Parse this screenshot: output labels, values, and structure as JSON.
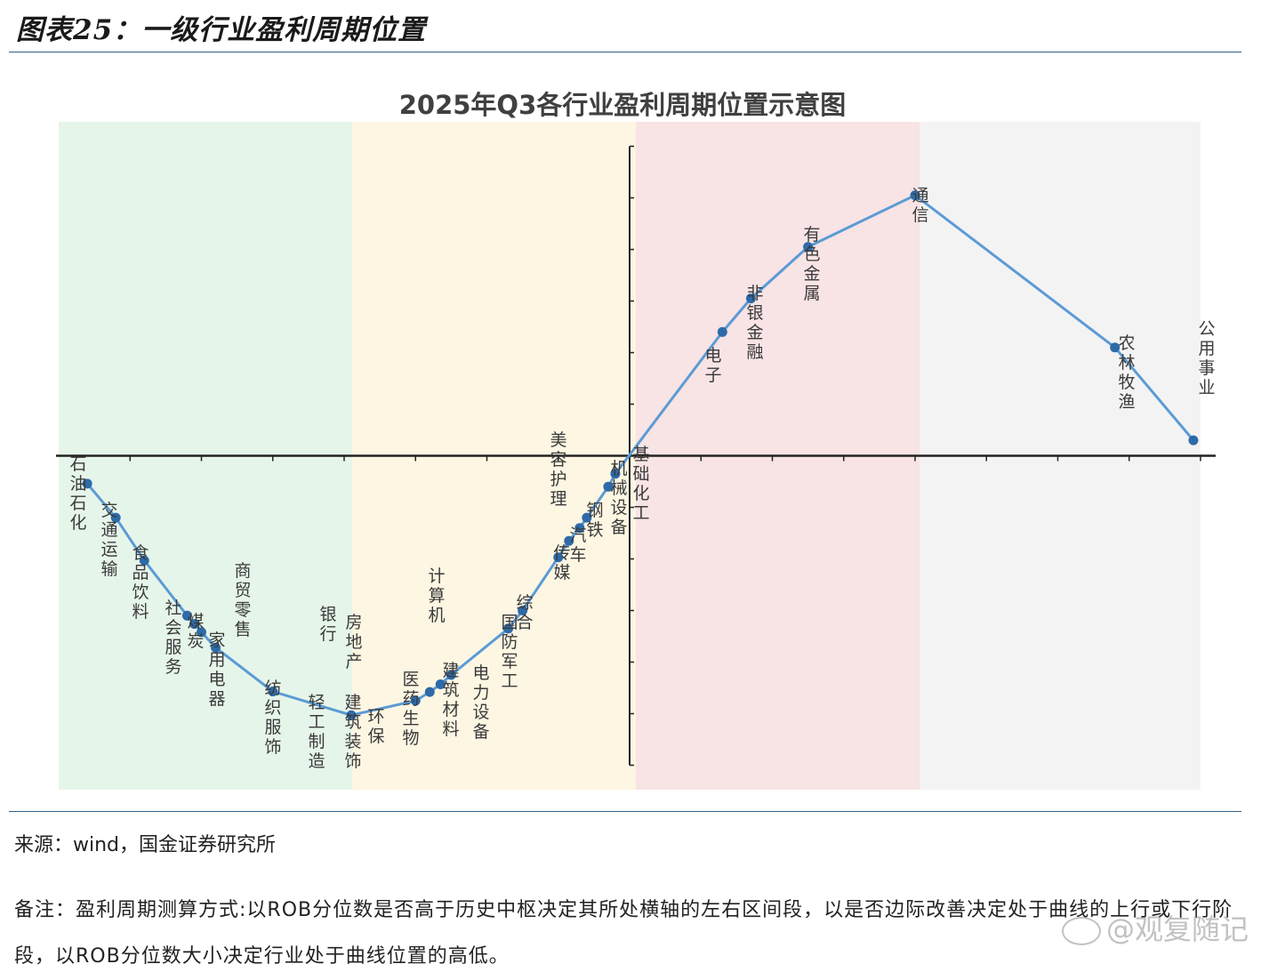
{
  "figure_title": "图表25：一级行业盈利周期位置",
  "source": "来源：wind，国金证券研究所",
  "note": "备注：盈利周期测算方式:以ROB分位数是否高于历史中枢决定其所处横轴的左右区间段，以是否边际改善决定处于曲线的上行或下行阶段，以ROB分位数大小决定行业处于曲线位置的高低。",
  "watermark": "@观复随记",
  "colors": {
    "zone1": "#e6f5ea",
    "zone2": "#fdf6e3",
    "zone3": "#f8e3e5",
    "zone4": "#f3f3f3",
    "line": "#5b9bd5",
    "marker": "#2e6aa8",
    "rule": "#2f5f86"
  },
  "chart_data": {
    "type": "line",
    "title": "2025年Q3各行业盈利周期位置示意图",
    "xlabel": "",
    "ylabel": "",
    "grid": false,
    "legend": "none",
    "series": [
      {
        "points": [
          {
            "name": "石油石化",
            "x": 0.4,
            "y": -0.54
          },
          {
            "name": "交通运输",
            "x": 0.8,
            "y": -1.2
          },
          {
            "name": "食品饮料",
            "x": 1.2,
            "y": -2.03
          },
          {
            "name": "社会服务",
            "x": 1.8,
            "y": -3.1
          },
          {
            "name": "煤炭",
            "x": 1.9,
            "y": -3.26
          },
          {
            "name": "家用电器",
            "x": 2.0,
            "y": -3.42
          },
          {
            "name": "商贸零售",
            "x": 2.2,
            "y": -3.72
          },
          {
            "name": "纺织服饰",
            "x": 3.0,
            "y": -4.57
          },
          {
            "name": "轻工制造",
            "x": 4.1,
            "y": -5.03
          },
          {
            "name": "建筑装饰",
            "x": 4.1,
            "y": -5.03
          },
          {
            "name": "银行",
            "x": 4.1,
            "y": -5.03
          },
          {
            "name": "房地产",
            "x": 4.1,
            "y": -5.03
          },
          {
            "name": "环保",
            "x": 4.1,
            "y": -5.03
          },
          {
            "name": "医药生物",
            "x": 5.0,
            "y": -4.75
          },
          {
            "name": "建筑材料",
            "x": 5.2,
            "y": -4.58
          },
          {
            "name": "计算机",
            "x": 5.35,
            "y": -4.43
          },
          {
            "name": "电力设备",
            "x": 5.5,
            "y": -4.25
          },
          {
            "name": "国防军工",
            "x": 6.3,
            "y": -3.35
          },
          {
            "name": "综合",
            "x": 6.5,
            "y": -3.0
          },
          {
            "name": "传媒",
            "x": 7.0,
            "y": -1.97
          },
          {
            "name": "汽车",
            "x": 7.15,
            "y": -1.65
          },
          {
            "name": "美容护理",
            "x": 7.3,
            "y": -1.4
          },
          {
            "name": "钢铁",
            "x": 7.4,
            "y": -1.2
          },
          {
            "name": "机械设备",
            "x": 7.7,
            "y": -0.6
          },
          {
            "name": "基础化工",
            "x": 7.8,
            "y": -0.35
          },
          {
            "name": "电子",
            "x": 9.3,
            "y": 2.4
          },
          {
            "name": "非银金融",
            "x": 9.7,
            "y": 3.05
          },
          {
            "name": "有色金属",
            "x": 10.5,
            "y": 4.05
          },
          {
            "name": "通信",
            "x": 12.0,
            "y": 5.05
          },
          {
            "name": "农林牧渔",
            "x": 14.8,
            "y": 2.1
          },
          {
            "name": "公用事业",
            "x": 15.9,
            "y": 0.3
          }
        ]
      }
    ],
    "xlim": [
      0,
      16
    ],
    "ylim": [
      -6,
      6
    ]
  }
}
